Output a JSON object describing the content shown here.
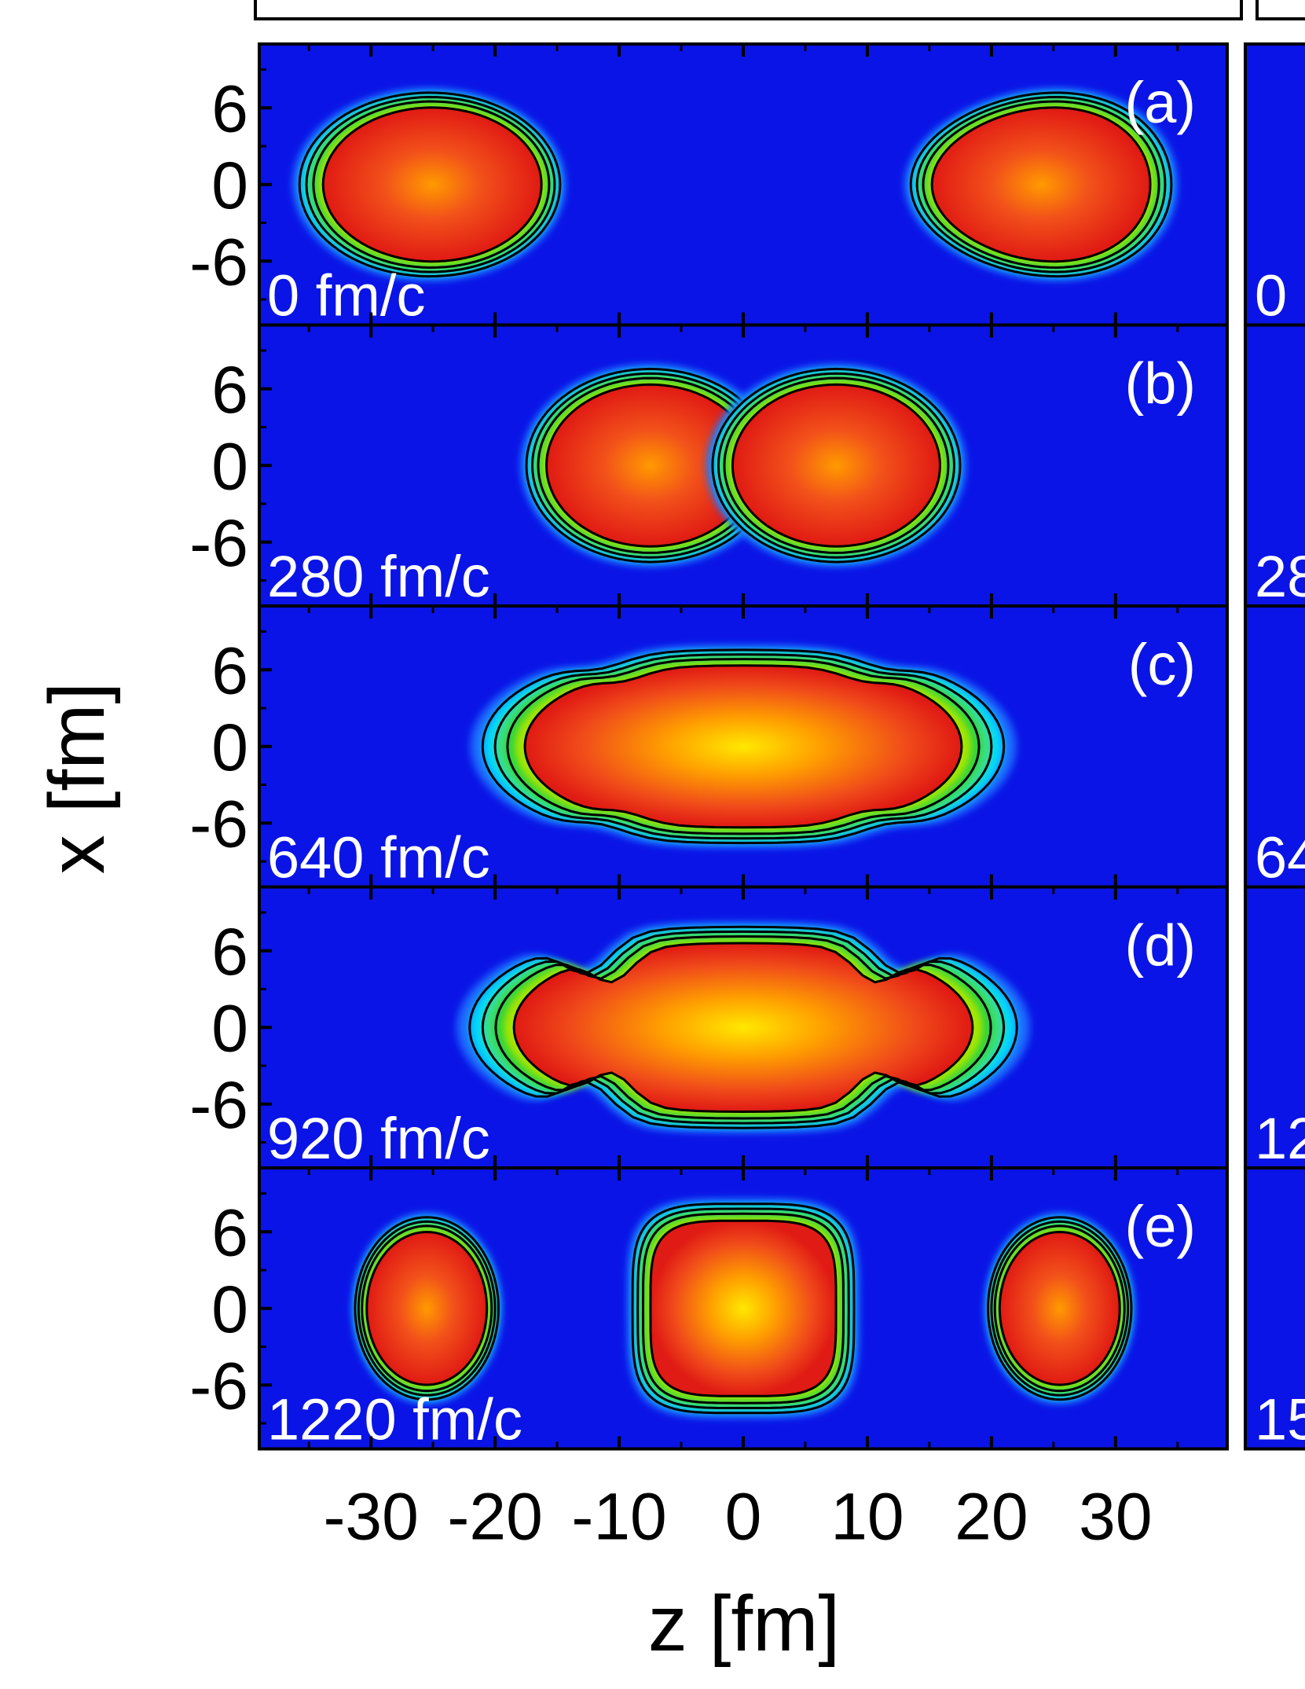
{
  "chart_data": {
    "type": "heatmap",
    "xlabel": "z [fm]",
    "ylabel": "x [fm]",
    "xlim": [
      -39,
      39
    ],
    "ylim": [
      -11,
      11
    ],
    "x_ticks": [
      -30,
      -20,
      -10,
      0,
      10,
      20,
      30
    ],
    "x_tick_labels": [
      "-30",
      "-20",
      "-10",
      "0",
      "10",
      "20",
      "30"
    ],
    "y_ticks": [
      -6,
      0,
      6
    ],
    "y_tick_labels": [
      "-6",
      "0",
      "6"
    ],
    "colormap": {
      "background": "#0a14e6",
      "stops": [
        "#0a14e6",
        "#00d8ff",
        "#28d23c",
        "#f0f000",
        "#ff7800",
        "#e61414"
      ]
    },
    "contour_color": "#000000",
    "panels": [
      {
        "id": "a",
        "letter": "(a)",
        "time": "0 fm/c",
        "blobs": [
          {
            "z": -24,
            "x": 0,
            "rz": 10,
            "rx": 6.8,
            "shape": "pear-left",
            "inner": "red"
          },
          {
            "z": 24,
            "x": 0,
            "rz": 10,
            "rx": 6.8,
            "shape": "pear-right",
            "inner": "red"
          }
        ]
      },
      {
        "id": "b",
        "letter": "(b)",
        "time": "280 fm/c",
        "blobs": [
          {
            "z": -7.5,
            "x": 0,
            "rz": 9.5,
            "rx": 7.2,
            "shape": "ellipse",
            "inner": "red"
          },
          {
            "z": 7.5,
            "x": 0,
            "rz": 9.5,
            "rx": 7.2,
            "shape": "ellipse",
            "inner": "red"
          }
        ]
      },
      {
        "id": "c",
        "letter": "(c)",
        "time": "640 fm/c",
        "blobs": [
          {
            "z": 0,
            "x": 0,
            "rz": 20,
            "rx": 7.2,
            "shape": "dogbone",
            "inner": "red-yellow"
          }
        ]
      },
      {
        "id": "d",
        "letter": "(d)",
        "time": "920 fm/c",
        "blobs": [
          {
            "z": 0,
            "x": 0,
            "rz": 21,
            "rx": 7.5,
            "shape": "three-lobe",
            "inner": "red-yellow"
          }
        ]
      },
      {
        "id": "e",
        "letter": "(e)",
        "time": "1220 fm/c",
        "blobs": [
          {
            "z": -25.5,
            "x": 0,
            "rz": 5.5,
            "rx": 6.8,
            "shape": "ellipse",
            "inner": "red"
          },
          {
            "z": 0,
            "x": 0,
            "rz": 8.5,
            "rx": 7.8,
            "shape": "rounded-square",
            "inner": "red-yellow"
          },
          {
            "z": 25.5,
            "x": 0,
            "rz": 5.5,
            "rx": 6.8,
            "shape": "ellipse",
            "inner": "red"
          }
        ]
      }
    ],
    "right_panel_time_fragments": [
      "0",
      "28",
      "64",
      "12",
      "15"
    ]
  }
}
